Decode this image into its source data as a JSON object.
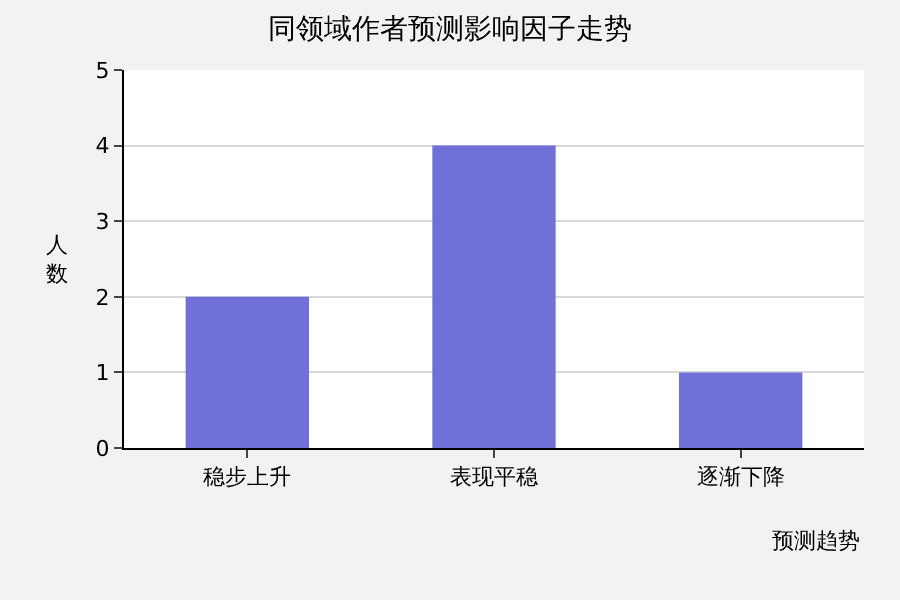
{
  "chart_data": {
    "type": "bar",
    "title": "同领域作者预测影响因子走势",
    "xlabel": "预测趋势",
    "ylabel": "人数",
    "categories": [
      "稳步上升",
      "表现平稳",
      "逐渐下降"
    ],
    "values": [
      2,
      4,
      1
    ],
    "color": "#7070d8",
    "ylim": [
      0,
      5
    ],
    "yticks": [
      0,
      1,
      2,
      3,
      4,
      5
    ],
    "grid": "y",
    "legend": false
  }
}
